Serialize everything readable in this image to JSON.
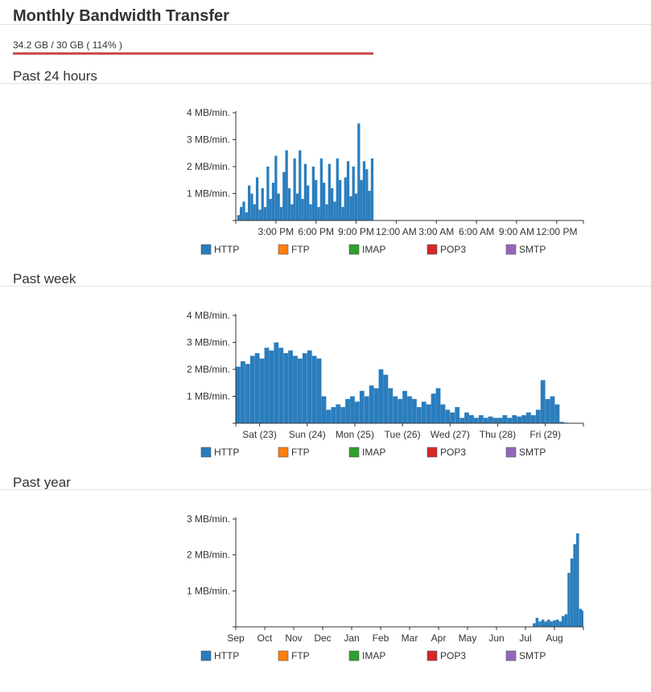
{
  "page": {
    "title": "Monthly Bandwidth Transfer",
    "usage_text": "34.2 GB / 30 GB ( 114% )",
    "usage_percent": 114
  },
  "colors": {
    "HTTP": "#2a7dbd",
    "FTP": "#ff7f0e",
    "IMAP": "#2ca02c",
    "POP3": "#d62728",
    "SMTP": "#9467bd",
    "usage_bar": "#c9504d"
  },
  "chart_data": [
    {
      "type": "bar",
      "title": "Past 24 hours",
      "ylabel": "",
      "unit": "MB/min.",
      "ylim": [
        0,
        4
      ],
      "yticks": [
        {
          "v": 1,
          "label": "1 MB/min."
        },
        {
          "v": 2,
          "label": "2 MB/min."
        },
        {
          "v": 3,
          "label": "3 MB/min."
        },
        {
          "v": 4,
          "label": "4 MB/min."
        }
      ],
      "xlim": [
        0,
        26
      ],
      "xticks": [
        {
          "v": 0,
          "label": ""
        },
        {
          "v": 3,
          "label": "3:00 PM"
        },
        {
          "v": 6,
          "label": "6:00 PM"
        },
        {
          "v": 9,
          "label": "9:00 PM"
        },
        {
          "v": 12,
          "label": "12:00 AM"
        },
        {
          "v": 15,
          "label": "3:00 AM"
        },
        {
          "v": 18,
          "label": "6:00 AM"
        },
        {
          "v": 21,
          "label": "9:00 AM"
        },
        {
          "v": 24,
          "label": "12:00 PM"
        }
      ],
      "legend": [
        "HTTP",
        "FTP",
        "IMAP",
        "POP3",
        "SMTP"
      ],
      "series": [
        {
          "name": "HTTP",
          "x": [
            0.2,
            0.4,
            0.6,
            0.8,
            1.0,
            1.2,
            1.4,
            1.6,
            1.8,
            2.0,
            2.2,
            2.4,
            2.6,
            2.8,
            3.0,
            3.2,
            3.4,
            3.6,
            3.8,
            4.0,
            4.2,
            4.4,
            4.6,
            4.8,
            5.0,
            5.2,
            5.4,
            5.6,
            5.8,
            6.0,
            6.2,
            6.4,
            6.6,
            6.8,
            7.0,
            7.2,
            7.4,
            7.6,
            7.8,
            8.0,
            8.2,
            8.4,
            8.6,
            8.8,
            9.0,
            9.2,
            9.4,
            9.6,
            9.8,
            10.0,
            10.2
          ],
          "values": [
            0.2,
            0.5,
            0.7,
            0.3,
            1.3,
            1.0,
            0.6,
            1.6,
            0.4,
            1.2,
            0.5,
            2.0,
            0.8,
            1.4,
            2.4,
            1.0,
            0.5,
            1.8,
            2.6,
            1.2,
            0.6,
            2.3,
            1.0,
            2.6,
            0.8,
            2.1,
            1.3,
            0.6,
            2.0,
            1.5,
            0.5,
            2.3,
            1.4,
            0.6,
            2.1,
            1.2,
            0.7,
            2.3,
            1.5,
            0.5,
            1.6,
            2.2,
            0.9,
            2.0,
            1.0,
            3.6,
            1.5,
            2.2,
            1.9,
            1.1,
            2.3
          ]
        },
        {
          "name": "FTP",
          "x": [],
          "values": []
        },
        {
          "name": "IMAP",
          "x": [],
          "values": []
        },
        {
          "name": "POP3",
          "x": [],
          "values": []
        },
        {
          "name": "SMTP",
          "x": [],
          "values": []
        }
      ]
    },
    {
      "type": "bar",
      "title": "Past week",
      "ylabel": "",
      "unit": "MB/min.",
      "ylim": [
        0,
        4
      ],
      "yticks": [
        {
          "v": 1,
          "label": "1 MB/min."
        },
        {
          "v": 2,
          "label": "2 MB/min."
        },
        {
          "v": 3,
          "label": "3 MB/min."
        },
        {
          "v": 4,
          "label": "4 MB/min."
        }
      ],
      "xlim": [
        0,
        7.3
      ],
      "xticks": [
        {
          "v": 0,
          "label": ""
        },
        {
          "v": 0.5,
          "label": "Sat (23)"
        },
        {
          "v": 1.5,
          "label": "Sun (24)"
        },
        {
          "v": 2.5,
          "label": "Mon (25)"
        },
        {
          "v": 3.5,
          "label": "Tue (26)"
        },
        {
          "v": 4.5,
          "label": "Wed (27)"
        },
        {
          "v": 5.5,
          "label": "Thu (28)"
        },
        {
          "v": 6.5,
          "label": "Fri (29)"
        }
      ],
      "legend": [
        "HTTP",
        "FTP",
        "IMAP",
        "POP3",
        "SMTP"
      ],
      "series": [
        {
          "name": "HTTP",
          "x": [
            0.05,
            0.15,
            0.25,
            0.35,
            0.45,
            0.55,
            0.65,
            0.75,
            0.85,
            0.95,
            1.05,
            1.15,
            1.25,
            1.35,
            1.45,
            1.55,
            1.65,
            1.75,
            1.85,
            1.95,
            2.05,
            2.15,
            2.25,
            2.35,
            2.45,
            2.55,
            2.65,
            2.75,
            2.85,
            2.95,
            3.05,
            3.15,
            3.25,
            3.35,
            3.45,
            3.55,
            3.65,
            3.75,
            3.85,
            3.95,
            4.05,
            4.15,
            4.25,
            4.35,
            4.45,
            4.55,
            4.65,
            4.75,
            4.85,
            4.95,
            5.05,
            5.15,
            5.25,
            5.35,
            5.45,
            5.55,
            5.65,
            5.75,
            5.85,
            5.95,
            6.05,
            6.15,
            6.25,
            6.35,
            6.45,
            6.55,
            6.65,
            6.75,
            6.85,
            6.95
          ],
          "values": [
            2.1,
            2.3,
            2.2,
            2.5,
            2.6,
            2.4,
            2.8,
            2.7,
            3.0,
            2.8,
            2.6,
            2.7,
            2.5,
            2.4,
            2.6,
            2.7,
            2.5,
            2.4,
            1.0,
            0.5,
            0.6,
            0.7,
            0.6,
            0.9,
            1.0,
            0.8,
            1.2,
            1.0,
            1.4,
            1.3,
            2.0,
            1.8,
            1.3,
            1.0,
            0.9,
            1.2,
            1.0,
            0.9,
            0.6,
            0.8,
            0.7,
            1.1,
            1.3,
            0.7,
            0.5,
            0.4,
            0.6,
            0.2,
            0.4,
            0.3,
            0.2,
            0.3,
            0.2,
            0.25,
            0.2,
            0.2,
            0.3,
            0.2,
            0.3,
            0.25,
            0.3,
            0.4,
            0.3,
            0.5,
            1.6,
            0.9,
            1.0,
            0.7,
            0.05,
            0.02
          ]
        },
        {
          "name": "FTP",
          "x": [],
          "values": []
        },
        {
          "name": "IMAP",
          "x": [],
          "values": []
        },
        {
          "name": "POP3",
          "x": [],
          "values": []
        },
        {
          "name": "SMTP",
          "x": [],
          "values": []
        }
      ]
    },
    {
      "type": "bar",
      "title": "Past year",
      "ylabel": "",
      "unit": "MB/min.",
      "ylim": [
        0,
        3
      ],
      "yticks": [
        {
          "v": 1,
          "label": "1 MB/min."
        },
        {
          "v": 2,
          "label": "2 MB/min."
        },
        {
          "v": 3,
          "label": "3 MB/min."
        }
      ],
      "xlim": [
        0,
        12
      ],
      "xticks": [
        {
          "v": 0,
          "label": "Sep"
        },
        {
          "v": 1,
          "label": "Oct"
        },
        {
          "v": 2,
          "label": "Nov"
        },
        {
          "v": 3,
          "label": "Dec"
        },
        {
          "v": 4,
          "label": "Jan"
        },
        {
          "v": 5,
          "label": "Feb"
        },
        {
          "v": 6,
          "label": "Mar"
        },
        {
          "v": 7,
          "label": "Apr"
        },
        {
          "v": 8,
          "label": "May"
        },
        {
          "v": 9,
          "label": "Jun"
        },
        {
          "v": 10,
          "label": "Jul"
        },
        {
          "v": 11,
          "label": "Aug"
        }
      ],
      "legend": [
        "HTTP",
        "FTP",
        "IMAP",
        "POP3",
        "SMTP"
      ],
      "series": [
        {
          "name": "HTTP",
          "x": [
            10.3,
            10.4,
            10.5,
            10.6,
            10.7,
            10.8,
            10.9,
            11.0,
            11.1,
            11.2,
            11.3,
            11.4,
            11.5,
            11.6,
            11.7,
            11.8,
            11.9,
            11.95
          ],
          "values": [
            0.1,
            0.25,
            0.15,
            0.2,
            0.15,
            0.2,
            0.15,
            0.18,
            0.2,
            0.15,
            0.3,
            0.35,
            1.5,
            1.9,
            2.3,
            2.6,
            0.5,
            0.45
          ]
        },
        {
          "name": "FTP",
          "x": [],
          "values": []
        },
        {
          "name": "IMAP",
          "x": [],
          "values": []
        },
        {
          "name": "POP3",
          "x": [],
          "values": []
        },
        {
          "name": "SMTP",
          "x": [],
          "values": []
        }
      ]
    }
  ]
}
